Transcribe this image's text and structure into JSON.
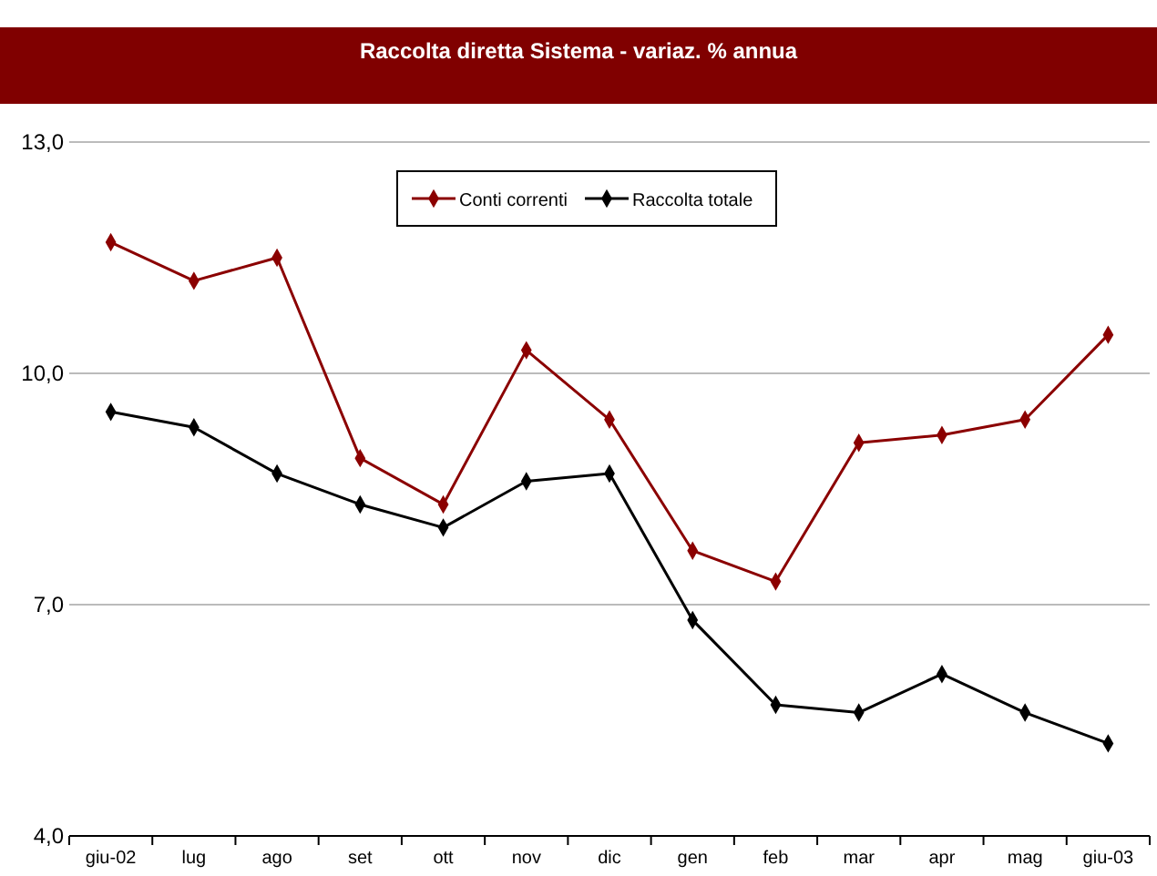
{
  "chart_data": {
    "type": "line",
    "title": "Raccolta diretta Sistema - variaz. % annua",
    "categories": [
      "giu-02",
      "lug",
      "ago",
      "set",
      "ott",
      "nov",
      "dic",
      "gen",
      "feb",
      "mar",
      "apr",
      "mag",
      "giu-03"
    ],
    "series": [
      {
        "name": "Conti correnti",
        "color": "#8b0000",
        "values": [
          11.7,
          11.2,
          11.5,
          8.9,
          8.3,
          10.3,
          9.4,
          7.7,
          7.3,
          9.1,
          9.2,
          9.4,
          10.5
        ]
      },
      {
        "name": "Raccolta totale",
        "color": "#000000",
        "values": [
          9.5,
          9.3,
          8.7,
          8.3,
          8.0,
          8.6,
          8.7,
          6.8,
          5.7,
          5.6,
          6.1,
          5.6,
          5.2
        ]
      }
    ],
    "ylim": [
      4,
      13
    ],
    "yticks": [
      {
        "value": 4,
        "label": "4,0"
      },
      {
        "value": 7,
        "label": "7,0"
      },
      {
        "value": 10,
        "label": "10,0"
      },
      {
        "value": 13,
        "label": "13,0"
      }
    ],
    "grid": "y",
    "legend": "top",
    "marker": "diamond",
    "line_style": "solid"
  }
}
